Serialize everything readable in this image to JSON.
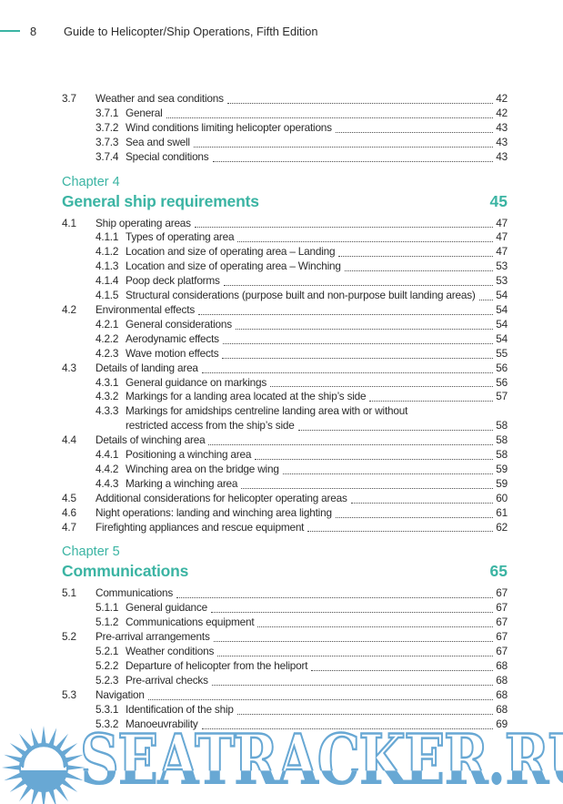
{
  "theme": {
    "accent_teal": "#3bb4a3",
    "text_color": "#2b2b2b",
    "watermark_blue": "#68a8d4"
  },
  "header": {
    "page_number": "8",
    "running_title": "Guide to Helicopter/Ship Operations, Fifth Edition"
  },
  "toc": {
    "leading_entries": [
      {
        "level": 1,
        "number": "3.7",
        "title": "Weather and sea conditions",
        "page": "42"
      },
      {
        "level": 2,
        "number": "3.7.1",
        "title": "General",
        "page": "42"
      },
      {
        "level": 2,
        "number": "3.7.2",
        "title": "Wind conditions limiting helicopter operations",
        "page": "43"
      },
      {
        "level": 2,
        "number": "3.7.3",
        "title": "Sea and swell",
        "page": "43"
      },
      {
        "level": 2,
        "number": "3.7.4",
        "title": "Special conditions",
        "page": "43"
      }
    ],
    "chapters": [
      {
        "label": "Chapter 4",
        "title": "General ship requirements",
        "page": "45",
        "entries": [
          {
            "level": 1,
            "number": "4.1",
            "title": "Ship operating areas",
            "page": "47"
          },
          {
            "level": 2,
            "number": "4.1.1",
            "title": "Types of operating area",
            "page": "47"
          },
          {
            "level": 2,
            "number": "4.1.2",
            "title": "Location and size of operating area – Landing",
            "page": "47"
          },
          {
            "level": 2,
            "number": "4.1.3",
            "title": "Location and size of operating area – Winching",
            "page": "53"
          },
          {
            "level": 2,
            "number": "4.1.4",
            "title": "Poop deck platforms",
            "page": "53"
          },
          {
            "level": 2,
            "number": "4.1.5",
            "title": "Structural considerations (purpose built and non-purpose built landing areas)",
            "page": "54"
          },
          {
            "level": 1,
            "number": "4.2",
            "title": "Environmental effects",
            "page": "54"
          },
          {
            "level": 2,
            "number": "4.2.1",
            "title": "General considerations",
            "page": "54"
          },
          {
            "level": 2,
            "number": "4.2.2",
            "title": "Aerodynamic effects",
            "page": "54"
          },
          {
            "level": 2,
            "number": "4.2.3",
            "title": "Wave motion effects",
            "page": "55"
          },
          {
            "level": 1,
            "number": "4.3",
            "title": "Details of landing area",
            "page": "56"
          },
          {
            "level": 2,
            "number": "4.3.1",
            "title": "General guidance on markings",
            "page": "56"
          },
          {
            "level": 2,
            "number": "4.3.2",
            "title": "Markings for a landing area located at the ship’s side",
            "page": "57"
          },
          {
            "level": 2,
            "number": "4.3.3",
            "title": "Markings for amidships centreline landing area with or without",
            "title2": "restricted access from the ship’s side",
            "page": "58"
          },
          {
            "level": 1,
            "number": "4.4",
            "title": "Details of winching area",
            "page": "58"
          },
          {
            "level": 2,
            "number": "4.4.1",
            "title": "Positioning a winching area",
            "page": "58"
          },
          {
            "level": 2,
            "number": "4.4.2",
            "title": "Winching area on the bridge wing",
            "page": "59"
          },
          {
            "level": 2,
            "number": "4.4.3",
            "title": "Marking a winching area",
            "page": "59"
          },
          {
            "level": 1,
            "number": "4.5",
            "title": "Additional considerations for helicopter operating areas",
            "page": "60"
          },
          {
            "level": 1,
            "number": "4.6",
            "title": "Night operations: landing and winching area lighting",
            "page": "61"
          },
          {
            "level": 1,
            "number": "4.7",
            "title": "Firefighting appliances and rescue equipment",
            "page": "62"
          }
        ]
      },
      {
        "label": "Chapter 5",
        "title": "Communications",
        "page": "65",
        "entries": [
          {
            "level": 1,
            "number": "5.1",
            "title": "Communications",
            "page": "67"
          },
          {
            "level": 2,
            "number": "5.1.1",
            "title": "General guidance",
            "page": "67"
          },
          {
            "level": 2,
            "number": "5.1.2",
            "title": "Communications equipment",
            "page": "67"
          },
          {
            "level": 1,
            "number": "5.2",
            "title": "Pre-arrival arrangements",
            "page": "67"
          },
          {
            "level": 2,
            "number": "5.2.1",
            "title": "Weather conditions",
            "page": "67"
          },
          {
            "level": 2,
            "number": "5.2.2",
            "title": "Departure of helicopter from the heliport",
            "page": "68"
          },
          {
            "level": 2,
            "number": "5.2.3",
            "title": "Pre-arrival checks",
            "page": "68"
          },
          {
            "level": 1,
            "number": "5.3",
            "title": "Navigation",
            "page": "68"
          },
          {
            "level": 2,
            "number": "5.3.1",
            "title": "Identification of the ship",
            "page": "68"
          },
          {
            "level": 2,
            "number": "5.3.2",
            "title": "Manoeuvrability",
            "page": "69"
          }
        ]
      }
    ]
  },
  "watermark": {
    "text": "SEATRACKER.RU",
    "logo": "sun-over-sea"
  }
}
